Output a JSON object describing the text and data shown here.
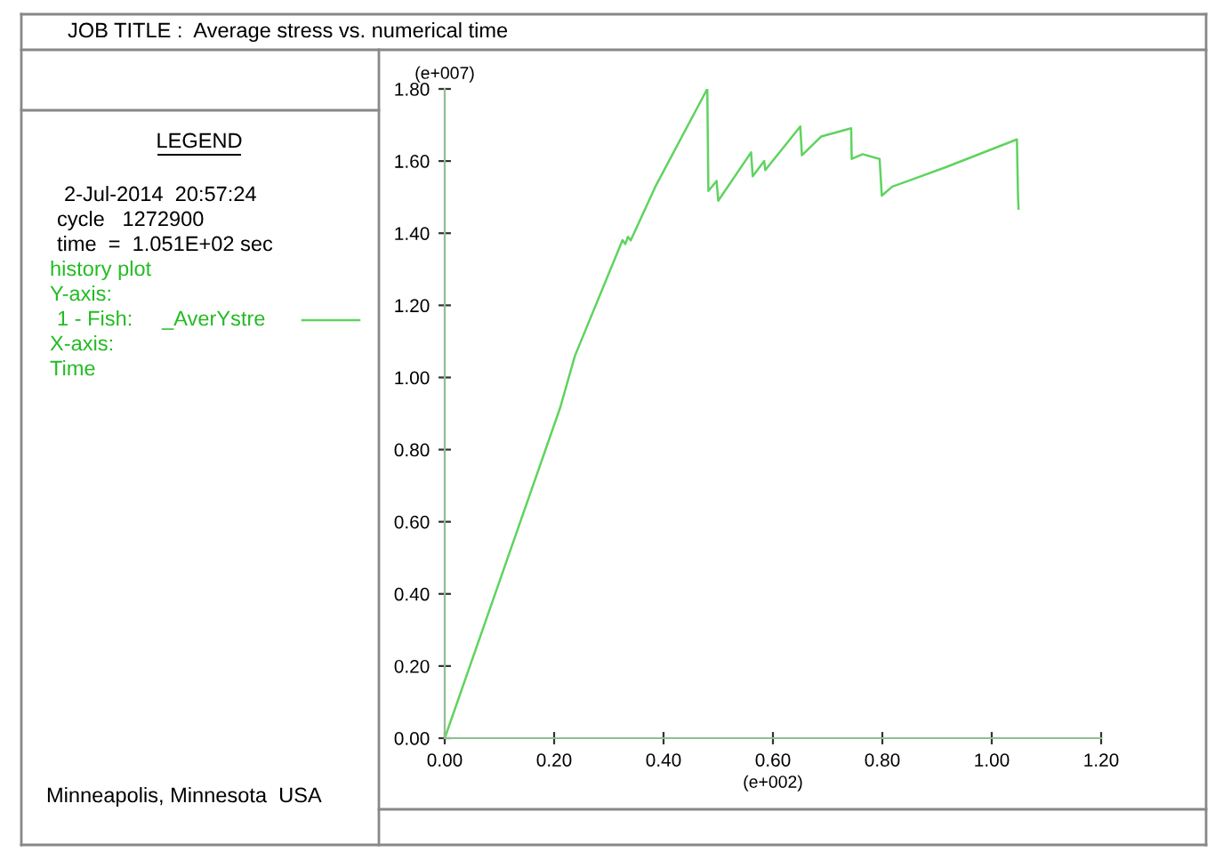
{
  "chart_data": {
    "type": "line",
    "title": "JOB TITLE :  Average stress vs. numerical time",
    "xlabel": "(e+002)",
    "ylabel": "(e+007)",
    "annotations": [
      "LEGEND",
      "2-Jul-2014  20:57:24",
      "cycle   1272900",
      "time  =  1.051E+02 sec",
      "history plot",
      "Y-axis:",
      "X-axis:",
      "Time",
      "Minneapolis, Minnesota  USA"
    ],
    "series": [
      {
        "name": "1 - Fish:     _AverYstre",
        "color": "#5fd35f",
        "x": [
          0.0,
          0.211,
          0.238,
          0.325,
          0.33,
          0.335,
          0.34,
          0.385,
          0.48,
          0.482,
          0.497,
          0.5,
          0.56,
          0.563,
          0.584,
          0.586,
          0.65,
          0.653,
          0.688,
          0.743,
          0.744,
          0.764,
          0.795,
          0.799,
          0.818,
          0.916,
          1.046,
          1.048,
          1.049
        ],
        "values": [
          0.0,
          0.916,
          1.06,
          1.381,
          1.37,
          1.39,
          1.38,
          1.529,
          1.8,
          1.517,
          1.545,
          1.49,
          1.624,
          1.558,
          1.6,
          1.575,
          1.696,
          1.616,
          1.668,
          1.691,
          1.606,
          1.619,
          1.606,
          1.504,
          1.529,
          1.583,
          1.66,
          1.504,
          1.468
        ]
      }
    ],
    "xlim": [
      0,
      1.2
    ],
    "ylim": [
      0,
      1.8
    ],
    "xticks": [
      {
        "value": 0,
        "label": "0.00"
      },
      {
        "value": 0.2,
        "label": "0.20"
      },
      {
        "value": 0.4,
        "label": "0.40"
      },
      {
        "value": 0.6,
        "label": "0.60"
      },
      {
        "value": 0.8,
        "label": "0.80"
      },
      {
        "value": 1.0,
        "label": "1.00"
      },
      {
        "value": 1.2,
        "label": "1.20"
      }
    ],
    "yticks": [
      {
        "value": 0,
        "label": "0.00"
      },
      {
        "value": 0.2,
        "label": "0.20"
      },
      {
        "value": 0.4,
        "label": "0.40"
      },
      {
        "value": 0.6,
        "label": "0.60"
      },
      {
        "value": 0.8,
        "label": "0.80"
      },
      {
        "value": 1.0,
        "label": "1.00"
      },
      {
        "value": 1.2,
        "label": "1.20"
      },
      {
        "value": 1.4,
        "label": "1.40"
      },
      {
        "value": 1.6,
        "label": "1.60"
      },
      {
        "value": 1.8,
        "label": "1.80"
      }
    ],
    "legend": "left",
    "grid": false,
    "marker": "none",
    "line_style": "solid"
  }
}
